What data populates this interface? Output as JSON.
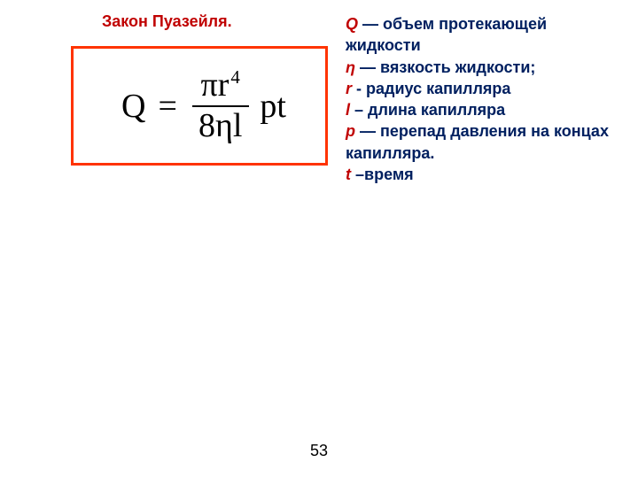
{
  "title": {
    "text": "Закон Пуазейля.",
    "color": "#c00000",
    "fontsize": 18
  },
  "formula": {
    "border_color": "#ff3300",
    "Q": "Q",
    "eq": "=",
    "num_pi": "π",
    "num_r": "r",
    "num_exp": "4",
    "den_8": "8",
    "den_eta": "η",
    "den_l": "l",
    "tail_p": "p",
    "tail_t": "t"
  },
  "definitions": {
    "fontsize": 18,
    "symbol_color": "#c00000",
    "text_color": "#002060",
    "items": [
      {
        "symbol": " Q",
        "sep": " — ",
        "desc": "объем протекающей жидкости"
      },
      {
        "symbol": "η",
        "sep": " — ",
        "desc": "вязкость жидкости;"
      },
      {
        "symbol": "r",
        "sep": " - ",
        "desc": "радиус капилляра"
      },
      {
        "symbol": "l",
        "sep": " – ",
        "desc": "длина капилляра"
      },
      {
        "symbol": "р",
        "sep": " — ",
        "desc": "перепад давления на концах капилляра."
      },
      {
        "symbol": " t",
        "sep": " –",
        "desc": "время"
      }
    ]
  },
  "page_number": "53"
}
